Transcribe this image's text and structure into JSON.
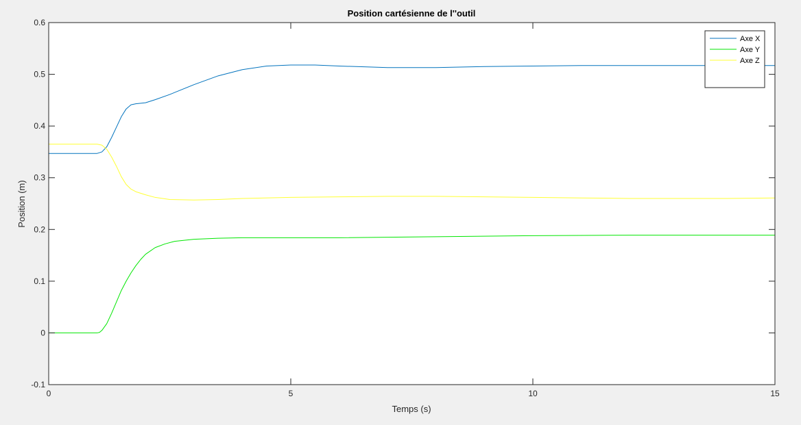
{
  "chart_data": {
    "type": "line",
    "title": "Position cartésienne de l''outil",
    "xlabel": "Temps (s)",
    "ylabel": "Position (m)",
    "xlim": [
      0,
      15
    ],
    "ylim": [
      -0.1,
      0.6
    ],
    "xticks": [
      0,
      5,
      10,
      15
    ],
    "xtick_labels": [
      "0",
      "5",
      "10",
      "15"
    ],
    "yticks": [
      -0.1,
      0,
      0.1,
      0.2,
      0.3,
      0.4,
      0.5,
      0.6
    ],
    "ytick_labels": [
      "-0.1",
      "0",
      "0.1",
      "0.2",
      "0.3",
      "0.4",
      "0.5",
      "0.6"
    ],
    "grid": false,
    "legend_position": "top-right",
    "series": [
      {
        "name": "Axe X",
        "color": "#0072bd",
        "x": [
          0,
          1.0,
          1.1,
          1.2,
          1.3,
          1.4,
          1.5,
          1.6,
          1.7,
          1.8,
          1.9,
          2.0,
          2.2,
          2.5,
          3.0,
          3.5,
          4.0,
          4.5,
          5.0,
          5.5,
          6.0,
          7.0,
          7.5,
          8.0,
          9.0,
          10.0,
          11.0,
          12.0,
          13.0,
          14.0,
          15.0
        ],
        "y": [
          0.347,
          0.347,
          0.35,
          0.36,
          0.378,
          0.398,
          0.418,
          0.433,
          0.441,
          0.443,
          0.444,
          0.445,
          0.451,
          0.461,
          0.48,
          0.497,
          0.509,
          0.516,
          0.518,
          0.518,
          0.516,
          0.513,
          0.513,
          0.513,
          0.515,
          0.516,
          0.517,
          0.517,
          0.517,
          0.517,
          0.517
        ]
      },
      {
        "name": "Axe Y",
        "color": "#00e600",
        "x": [
          0,
          1.0,
          1.05,
          1.1,
          1.2,
          1.3,
          1.4,
          1.5,
          1.6,
          1.7,
          1.8,
          1.9,
          2.0,
          2.2,
          2.4,
          2.6,
          3.0,
          3.5,
          4.0,
          5.0,
          6.0,
          8.0,
          10.0,
          12.0,
          13.0,
          14.0,
          15.0
        ],
        "y": [
          0.0,
          0.0,
          0.001,
          0.005,
          0.018,
          0.038,
          0.06,
          0.082,
          0.1,
          0.116,
          0.13,
          0.142,
          0.152,
          0.165,
          0.172,
          0.177,
          0.181,
          0.183,
          0.184,
          0.184,
          0.184,
          0.186,
          0.188,
          0.189,
          0.189,
          0.189,
          0.189
        ]
      },
      {
        "name": "Axe Z",
        "color": "#ffff33",
        "x": [
          0,
          1.0,
          1.1,
          1.2,
          1.3,
          1.4,
          1.5,
          1.6,
          1.7,
          1.8,
          1.9,
          2.0,
          2.2,
          2.5,
          3.0,
          3.5,
          4.0,
          5.0,
          6.0,
          7.0,
          8.0,
          9.0,
          10.0,
          11.0,
          12.0,
          13.0,
          14.0,
          15.0
        ],
        "y": [
          0.365,
          0.365,
          0.363,
          0.355,
          0.34,
          0.322,
          0.302,
          0.287,
          0.278,
          0.273,
          0.27,
          0.267,
          0.262,
          0.258,
          0.257,
          0.258,
          0.26,
          0.262,
          0.263,
          0.264,
          0.264,
          0.263,
          0.262,
          0.261,
          0.26,
          0.26,
          0.26,
          0.261
        ]
      }
    ]
  }
}
